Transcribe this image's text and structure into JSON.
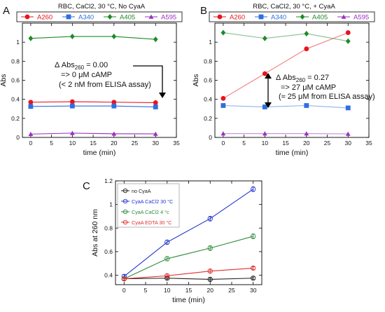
{
  "panels": {
    "A": {
      "letter": "A",
      "title": "RBC, CaCl2, 30 °C, No CyaA"
    },
    "B": {
      "letter": "B",
      "title": "RBC, CaCl2, 30 °C, + CyaA"
    },
    "C": {
      "letter": "C"
    }
  },
  "annotations": {
    "A": {
      "line1_prefix": "Δ Abs",
      "line1_sub": "260",
      "line1_suffix": " = 0.00",
      "line2": "=> 0 μM cAMP",
      "line3": "(< 2 nM from ELISA assay)"
    },
    "B": {
      "line1_prefix": "Δ Abs",
      "line1_sub": "260",
      "line1_suffix": " = 0.27",
      "line2": "=> 27 μM cAMP",
      "line3": "(≈ 25 μM from ELISA assay)"
    }
  },
  "chart_data": [
    {
      "type": "line",
      "title": "RBC, CaCl2, 30 °C, No CyaA",
      "xlabel": "time (min)",
      "ylabel": "Abs",
      "xlim": [
        -2,
        35
      ],
      "ylim": [
        0,
        1.2
      ],
      "xticks": [
        0,
        5,
        10,
        15,
        20,
        25,
        30,
        35
      ],
      "yticks": [
        0,
        0.2,
        0.4,
        0.6,
        0.8,
        1
      ],
      "legend": "top",
      "x": [
        0,
        10,
        20,
        30
      ],
      "series": [
        {
          "name": "A260",
          "color": "#e8141c",
          "marker": "circle",
          "values": [
            0.37,
            0.375,
            0.37,
            0.365
          ]
        },
        {
          "name": "A340",
          "color": "#2e6fe0",
          "marker": "square",
          "values": [
            0.325,
            0.33,
            0.33,
            0.32
          ]
        },
        {
          "name": "A405",
          "color": "#1f8a2a",
          "marker": "diamond",
          "values": [
            1.04,
            1.06,
            1.06,
            1.03
          ]
        },
        {
          "name": "A595",
          "color": "#9b2fc2",
          "marker": "triangle",
          "values": [
            0.035,
            0.045,
            0.038,
            0.037
          ]
        }
      ]
    },
    {
      "type": "line",
      "title": "RBC, CaCl2, 30 °C, + CyaA",
      "xlabel": "time (min)",
      "ylabel": "Abs",
      "xlim": [
        -2,
        35
      ],
      "ylim": [
        0,
        1.2
      ],
      "xticks": [
        0,
        5,
        10,
        15,
        20,
        25,
        30,
        35
      ],
      "yticks": [
        0,
        0.2,
        0.4,
        0.6,
        0.8,
        1
      ],
      "legend": "top",
      "x": [
        0,
        10,
        20,
        30
      ],
      "series": [
        {
          "name": "A260",
          "color": "#e8141c",
          "marker": "circle",
          "values": [
            0.41,
            0.67,
            0.93,
            1.1
          ]
        },
        {
          "name": "A340",
          "color": "#2e6fe0",
          "marker": "square",
          "values": [
            0.335,
            0.32,
            0.335,
            0.31
          ]
        },
        {
          "name": "A405",
          "color": "#1f8a2a",
          "marker": "diamond",
          "values": [
            1.1,
            1.04,
            1.09,
            1.01
          ]
        },
        {
          "name": "A595",
          "color": "#9b2fc2",
          "marker": "triangle",
          "values": [
            0.04,
            0.04,
            0.04,
            0.037
          ]
        }
      ]
    },
    {
      "type": "line",
      "xlabel": "time (min)",
      "ylabel": "Abs at 260 nm",
      "xlim": [
        -2,
        32
      ],
      "ylim": [
        0.32,
        1.2
      ],
      "xticks": [
        0,
        5,
        10,
        15,
        20,
        25,
        30
      ],
      "yticks": [
        0.4,
        0.6,
        0.8,
        1,
        1.2
      ],
      "legend": "top-left",
      "x": [
        0,
        10,
        20,
        30
      ],
      "series": [
        {
          "name": "no CyaA",
          "color": "#222222",
          "values": [
            0.37,
            0.375,
            0.365,
            0.375
          ],
          "err": [
            0.012,
            0.012,
            0.012,
            0.01
          ]
        },
        {
          "name": "CyaA CaCl2 30 °C",
          "color": "#2233cc",
          "values": [
            0.39,
            0.68,
            0.88,
            1.13
          ],
          "err": [
            0.015,
            0.018,
            0.02,
            0.02
          ]
        },
        {
          "name": "CyaA CaCl2 4 °c",
          "color": "#2e8b3a",
          "values": [
            0.37,
            0.54,
            0.63,
            0.73
          ],
          "err": [
            0.015,
            0.018,
            0.02,
            0.02
          ]
        },
        {
          "name": "CyaA EDTA 30 °C",
          "color": "#e03030",
          "values": [
            0.37,
            0.395,
            0.435,
            0.46
          ],
          "err": [
            0.012,
            0.015,
            0.015,
            0.012
          ]
        }
      ]
    }
  ]
}
